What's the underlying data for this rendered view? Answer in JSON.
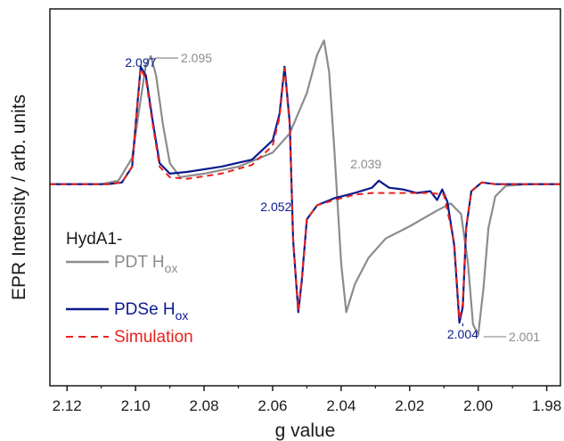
{
  "chart_data": {
    "type": "line",
    "xlabel": "g value",
    "ylabel": "EPR Intensity / arb. units",
    "xlim": [
      2.125,
      1.976
    ],
    "x_reversed": true,
    "xticks": [
      2.12,
      2.1,
      2.08,
      2.06,
      2.04,
      2.02,
      2.0,
      1.98
    ],
    "xtick_labels": [
      "2.12",
      "2.10",
      "2.08",
      "2.06",
      "2.04",
      "2.02",
      "2.00",
      "1.98"
    ],
    "ylim": [
      -1.15,
      1.0
    ],
    "yticks": "none",
    "grid": false,
    "legend_title": "HydA1-",
    "legend_position": "left",
    "series": [
      {
        "name": "PDT H",
        "name_sub": "ox",
        "color": "#8c8c8c",
        "style": "solid",
        "x": [
          2.125,
          2.11,
          2.105,
          2.101,
          2.099,
          2.097,
          2.0955,
          2.094,
          2.092,
          2.09,
          2.087,
          2.08,
          2.07,
          2.06,
          2.055,
          2.05,
          2.047,
          2.045,
          2.0435,
          2.042,
          2.04,
          2.0385,
          2.036,
          2.032,
          2.027,
          2.02,
          2.012,
          2.008,
          2.005,
          2.003,
          2.0015,
          2.0,
          1.9985,
          1.997,
          1.995,
          1.992,
          1.985,
          1.976
        ],
        "y": [
          0.0,
          0.0,
          0.02,
          0.15,
          0.42,
          0.68,
          0.73,
          0.62,
          0.34,
          0.12,
          0.04,
          0.06,
          0.1,
          0.18,
          0.29,
          0.52,
          0.74,
          0.82,
          0.64,
          0.2,
          -0.45,
          -0.73,
          -0.57,
          -0.42,
          -0.31,
          -0.24,
          -0.15,
          -0.11,
          -0.17,
          -0.45,
          -0.8,
          -0.86,
          -0.6,
          -0.25,
          -0.07,
          -0.01,
          0.0,
          0.0
        ]
      },
      {
        "name": "PDSe H",
        "name_sub": "ox",
        "color": "#0a1a8f",
        "style": "solid",
        "x": [
          2.125,
          2.108,
          2.104,
          2.101,
          2.0995,
          2.0985,
          2.097,
          2.095,
          2.093,
          2.09,
          2.085,
          2.075,
          2.066,
          2.06,
          2.058,
          2.0565,
          2.055,
          2.054,
          2.0525,
          2.0515,
          2.05,
          2.047,
          2.042,
          2.036,
          2.031,
          2.029,
          2.026,
          2.022,
          2.018,
          2.014,
          2.012,
          2.0105,
          2.009,
          2.007,
          2.0055,
          2.0045,
          2.0035,
          2.002,
          1.999,
          1.995,
          1.976
        ],
        "y": [
          0.0,
          0.0,
          0.01,
          0.1,
          0.45,
          0.67,
          0.62,
          0.36,
          0.12,
          0.06,
          0.07,
          0.1,
          0.14,
          0.25,
          0.4,
          0.67,
          0.35,
          -0.32,
          -0.73,
          -0.55,
          -0.2,
          -0.12,
          -0.08,
          -0.05,
          -0.02,
          0.02,
          -0.02,
          -0.03,
          -0.05,
          -0.04,
          -0.09,
          -0.03,
          -0.1,
          -0.35,
          -0.79,
          -0.7,
          -0.25,
          -0.04,
          0.01,
          0.0,
          0.0
        ]
      },
      {
        "name": "Simulation",
        "color": "#e8231f",
        "style": "dashed",
        "x": [
          2.125,
          2.108,
          2.104,
          2.101,
          2.0995,
          2.0985,
          2.097,
          2.095,
          2.093,
          2.09,
          2.085,
          2.075,
          2.066,
          2.06,
          2.058,
          2.0565,
          2.055,
          2.054,
          2.0525,
          2.0515,
          2.05,
          2.047,
          2.042,
          2.036,
          2.031,
          2.026,
          2.022,
          2.018,
          2.014,
          2.01,
          2.007,
          2.0055,
          2.0045,
          2.0035,
          2.002,
          1.999,
          1.995,
          1.976
        ],
        "y": [
          0.0,
          0.0,
          0.01,
          0.1,
          0.45,
          0.66,
          0.6,
          0.34,
          0.1,
          0.04,
          0.03,
          0.06,
          0.11,
          0.22,
          0.38,
          0.66,
          0.33,
          -0.32,
          -0.72,
          -0.54,
          -0.2,
          -0.12,
          -0.09,
          -0.06,
          -0.05,
          -0.05,
          -0.05,
          -0.05,
          -0.05,
          -0.06,
          -0.33,
          -0.77,
          -0.68,
          -0.24,
          -0.04,
          0.01,
          0.0,
          0.0
        ]
      }
    ],
    "annotations": [
      {
        "text": "2.097",
        "color": "#0a1a8f",
        "x": 2.0985,
        "y": 0.67,
        "line": true
      },
      {
        "text": "2.095",
        "color": "#8c8c8c",
        "x": 2.0955,
        "y": 0.73,
        "line": true
      },
      {
        "text": "2.052",
        "color": "#0a1a8f",
        "x": 2.0525,
        "y": -0.05,
        "line": false
      },
      {
        "text": "2.039",
        "color": "#8c8c8c",
        "x": 2.039,
        "y": 0.32,
        "line": false
      },
      {
        "text": "2.004",
        "color": "#0a1a8f",
        "x": 2.0045,
        "y": -0.79,
        "line": true
      },
      {
        "text": "2.001",
        "color": "#8c8c8c",
        "x": 2.0,
        "y": -0.86,
        "line": true
      }
    ]
  }
}
